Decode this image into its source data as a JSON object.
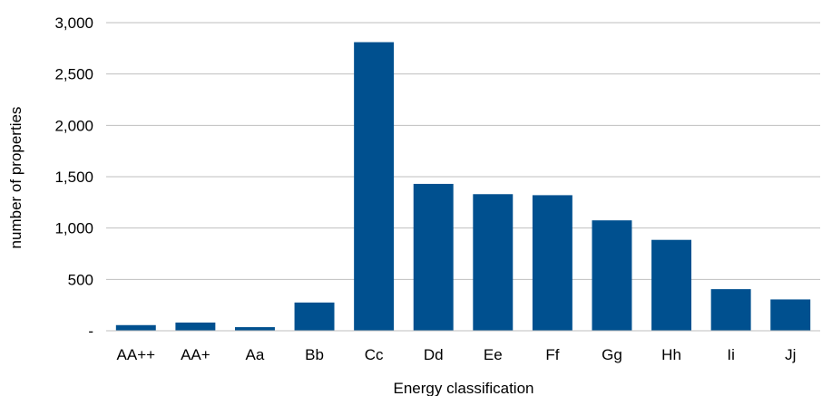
{
  "chart_data": {
    "type": "bar",
    "title": "",
    "xlabel": "Energy classification",
    "ylabel": "number of properties",
    "categories": [
      "AA++",
      "AA+",
      "Aa",
      "Bb",
      "Cc",
      "Dd",
      "Ee",
      "Ff",
      "Gg",
      "Hh",
      "Ii",
      "Jj"
    ],
    "values": [
      55,
      80,
      35,
      275,
      2810,
      1430,
      1330,
      1320,
      1075,
      885,
      405,
      305
    ],
    "ylim": [
      0,
      3000
    ],
    "yticks": [
      0,
      500,
      1000,
      1500,
      2000,
      2500,
      3000
    ],
    "ytick_labels": [
      "-",
      "500",
      "1,000",
      "1,500",
      "2,000",
      "2,500",
      "3,000"
    ],
    "grid": "horizontal",
    "legend": "none",
    "bar_color": "#00508F",
    "grid_color": "#BFBFBF"
  }
}
